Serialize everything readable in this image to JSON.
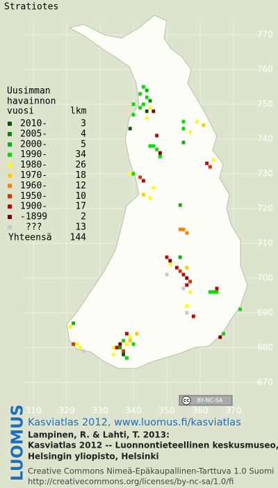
{
  "map": {
    "title": "Stratiotes",
    "legend": {
      "header": [
        "Uusimman",
        "havainnon"
      ],
      "year_header": "vuosi",
      "count_header": "lkm",
      "rows": [
        {
          "label": "2010-",
          "count": 3,
          "color": "#005a00"
        },
        {
          "label": "2005-",
          "count": 4,
          "color": "#008a00"
        },
        {
          "label": "2000-",
          "count": 5,
          "color": "#00b400"
        },
        {
          "label": "1990-",
          "count": 34,
          "color": "#00e000"
        },
        {
          "label": "1980-",
          "count": 26,
          "color": "#ffff00"
        },
        {
          "label": "1970-",
          "count": 18,
          "color": "#ffcc00"
        },
        {
          "label": "1960-",
          "count": 12,
          "color": "#ff8000"
        },
        {
          "label": "1950-",
          "count": 10,
          "color": "#e03000"
        },
        {
          "label": "1900-",
          "count": 17,
          "color": "#c80000"
        },
        {
          "label": "-1899",
          "count": 2,
          "color": "#800000"
        },
        {
          "label": "???",
          "count": 13,
          "color": "#c8c8c8"
        }
      ],
      "total_label": "Yhteensä",
      "total": 144
    },
    "xticks": [
      310,
      320,
      330,
      340,
      350,
      360,
      370
    ],
    "yticks": [
      770,
      760,
      750,
      740,
      730,
      720,
      710,
      700,
      690,
      680,
      670
    ],
    "observations": [
      [
        343,
        755,
        3
      ],
      [
        344,
        754,
        2
      ],
      [
        342,
        753,
        3
      ],
      [
        344,
        752,
        3
      ],
      [
        345,
        751,
        1
      ],
      [
        343,
        750,
        3
      ],
      [
        342,
        749,
        3
      ],
      [
        345,
        749,
        4
      ],
      [
        344,
        748,
        0
      ],
      [
        346,
        748,
        9
      ],
      [
        340,
        750,
        3
      ],
      [
        340,
        747,
        3
      ],
      [
        339,
        743,
        0
      ],
      [
        344,
        746,
        4
      ],
      [
        347,
        741,
        8
      ],
      [
        355,
        745,
        3
      ],
      [
        355,
        743,
        3
      ],
      [
        357,
        742,
        4
      ],
      [
        359,
        745,
        4
      ],
      [
        361,
        744,
        5
      ],
      [
        355,
        739,
        2
      ],
      [
        345,
        738,
        3
      ],
      [
        346,
        738,
        3
      ],
      [
        347,
        737,
        3
      ],
      [
        348,
        735,
        3
      ],
      [
        348,
        736,
        9
      ],
      [
        362,
        733,
        8
      ],
      [
        363,
        732,
        7
      ],
      [
        364,
        734,
        4
      ],
      [
        339,
        730,
        4
      ],
      [
        340,
        730,
        3
      ],
      [
        342,
        729,
        7
      ],
      [
        343,
        728,
        8
      ],
      [
        346,
        726,
        4
      ],
      [
        345,
        723,
        4
      ],
      [
        343,
        724,
        5
      ],
      [
        354,
        721,
        2
      ],
      [
        354,
        714,
        6
      ],
      [
        355,
        714,
        6
      ],
      [
        356,
        713,
        6
      ],
      [
        350,
        706,
        8
      ],
      [
        351,
        705,
        9
      ],
      [
        354,
        706,
        2
      ],
      [
        351,
        704,
        4
      ],
      [
        353,
        703,
        8
      ],
      [
        354,
        702,
        7
      ],
      [
        356,
        703,
        5
      ],
      [
        355,
        701,
        8
      ],
      [
        356,
        700,
        9
      ],
      [
        357,
        699,
        7
      ],
      [
        356,
        698,
        8
      ],
      [
        355,
        697,
        10
      ],
      [
        357,
        696,
        4
      ],
      [
        350,
        701,
        10
      ],
      [
        363,
        696,
        3
      ],
      [
        364,
        696,
        3
      ],
      [
        365,
        697,
        8
      ],
      [
        365,
        696,
        3
      ],
      [
        356,
        692,
        4
      ],
      [
        358,
        689,
        8
      ],
      [
        356,
        690,
        10
      ],
      [
        372,
        691,
        3
      ],
      [
        322,
        687,
        2
      ],
      [
        321,
        686,
        4
      ],
      [
        366,
        683,
        9
      ],
      [
        367,
        684,
        3
      ],
      [
        323,
        681,
        4
      ],
      [
        324,
        680,
        4
      ],
      [
        322,
        681,
        7
      ],
      [
        325,
        679,
        10
      ],
      [
        338,
        684,
        8
      ],
      [
        339,
        683,
        4
      ],
      [
        337,
        682,
        3
      ],
      [
        339,
        682,
        5
      ],
      [
        336,
        681,
        9
      ],
      [
        338,
        681,
        4
      ],
      [
        336,
        680,
        2
      ],
      [
        337,
        679,
        7
      ],
      [
        335,
        680,
        8
      ],
      [
        337,
        678,
        0
      ],
      [
        338,
        677,
        3
      ],
      [
        334,
        678,
        4
      ],
      [
        340,
        681,
        3
      ],
      [
        341,
        684,
        5
      ],
      [
        334,
        680,
        4
      ]
    ],
    "cc_badge": [
      "cc",
      "BY-NC-SA"
    ],
    "publisher_logo": "LUOMUS",
    "link": "Kasviatlas 2012, www.luomus.fi/kasviatlas",
    "citation": [
      "Lampinen, R. & Lahti, T. 2013:",
      "Kasviatlas 2012 -- Luonnontieteellinen keskusmuseo,",
      "Helsingin yliopisto, Helsinki"
    ],
    "license": [
      "Creative Commons Nimeä-Epäkaupallinen-Tarttuva 1.0 Suomi",
      "http://creativecommons.org/licenses/by-nc-sa/1.0/fi"
    ]
  }
}
